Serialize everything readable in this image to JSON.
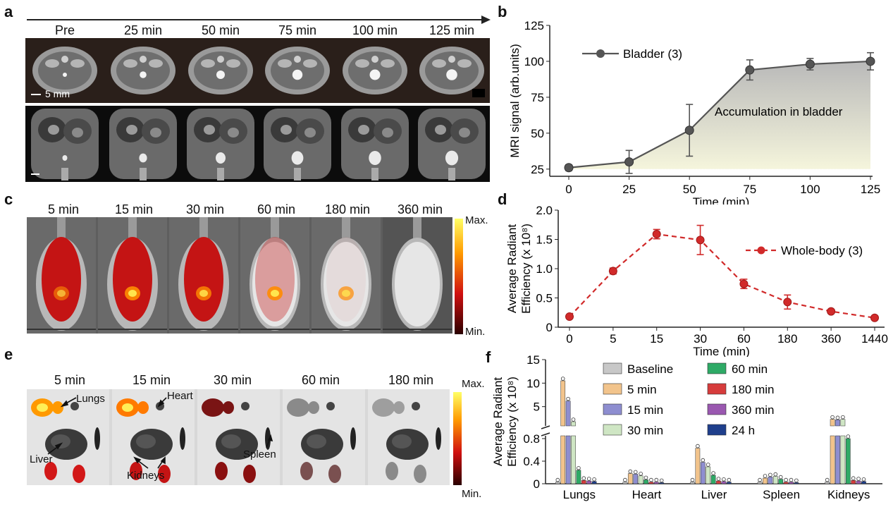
{
  "panels": {
    "a": {
      "label": "a",
      "times": [
        "Pre",
        "25 min",
        "50 min",
        "75 min",
        "100 min",
        "125 min"
      ],
      "scale_bar": "5 mm"
    },
    "b": {
      "label": "b",
      "annotation": "Accumulation in bladder",
      "chart_data": {
        "type": "line",
        "x": [
          0,
          25,
          50,
          75,
          100,
          125
        ],
        "series": [
          {
            "name": "Bladder (3)",
            "values": [
              26,
              30,
              52,
              94,
              98,
              100
            ],
            "errors": [
              2,
              8,
              18,
              7,
              4,
              6
            ]
          }
        ],
        "xlabel": "Time (min)",
        "ylabel": "MRI signal (arb.units)",
        "xticks": [
          "0",
          "25",
          "50",
          "75",
          "100",
          "125"
        ],
        "yticks": [
          "25",
          "50",
          "75",
          "100",
          "125"
        ],
        "ylim": [
          20,
          125
        ],
        "legend": "top-left",
        "color": "#555555"
      }
    },
    "c": {
      "label": "c",
      "times": [
        "5 min",
        "15 min",
        "30 min",
        "60 min",
        "180 min",
        "360 min"
      ],
      "colorbar_max": "Max.",
      "colorbar_min": "Min."
    },
    "d": {
      "label": "d",
      "chart_data": {
        "type": "line",
        "x": [
          "0",
          "5",
          "15",
          "30",
          "60",
          "180",
          "360",
          "1440"
        ],
        "series": [
          {
            "name": "Whole-body (3)",
            "values": [
              0.18,
              0.96,
              1.59,
              1.49,
              0.74,
              0.43,
              0.27,
              0.16
            ],
            "errors": [
              0.02,
              0.05,
              0.08,
              0.25,
              0.08,
              0.12,
              0.03,
              0.02
            ]
          }
        ],
        "xlabel": "Time (min)",
        "ylabel_line1": "Average Radiant",
        "ylabel_line2": "Efficiency (x 10⁸)",
        "yticks": [
          "0",
          "0.5",
          "1.0",
          "1.5",
          "2.0"
        ],
        "ylim": [
          0,
          2.0
        ],
        "legend": "right",
        "color": "#d12a2a"
      }
    },
    "e": {
      "label": "e",
      "times": [
        "5 min",
        "15 min",
        "30 min",
        "60 min",
        "180 min"
      ],
      "organ_labels": {
        "lungs": "Lungs",
        "heart": "Heart",
        "liver": "Liver",
        "spleen": "Spleen",
        "kidneys": "Kidneys"
      },
      "colorbar_max": "Max.",
      "colorbar_min": "Min."
    },
    "f": {
      "label": "f",
      "chart_data": {
        "type": "bar",
        "categories": [
          "Lungs",
          "Heart",
          "Liver",
          "Spleen",
          "Kidneys"
        ],
        "series": [
          {
            "name": "Baseline",
            "color": "#c8c8c8",
            "values": [
              0.03,
              0.03,
              0.03,
              0.03,
              0.03
            ]
          },
          {
            "name": "5 min",
            "color": "#f2c48c",
            "values": [
              10.5,
              0.18,
              0.63,
              0.1,
              2.3
            ]
          },
          {
            "name": "15 min",
            "color": "#8e8ed0",
            "values": [
              6.2,
              0.17,
              0.38,
              0.12,
              2.2
            ]
          },
          {
            "name": "30 min",
            "color": "#cfe6c4",
            "values": [
              1.8,
              0.14,
              0.3,
              0.13,
              2.3
            ]
          },
          {
            "name": "60 min",
            "color": "#2eaa66",
            "values": [
              0.24,
              0.07,
              0.15,
              0.08,
              0.8
            ]
          },
          {
            "name": "180 min",
            "color": "#d63c3c",
            "values": [
              0.06,
              0.03,
              0.05,
              0.03,
              0.06
            ]
          },
          {
            "name": "360 min",
            "color": "#9a58b0",
            "values": [
              0.05,
              0.03,
              0.04,
              0.03,
              0.05
            ]
          },
          {
            "name": "24 h",
            "color": "#1f3f8c",
            "values": [
              0.04,
              0.02,
              0.03,
              0.02,
              0.04
            ]
          }
        ],
        "ylabel_line1": "Average Radiant",
        "ylabel_line2": "Efficiency (x 10⁸)",
        "yticks_low": [
          "0",
          "0.4",
          "0.8"
        ],
        "yticks_high": [
          "5",
          "10",
          "15"
        ],
        "ylim_low": [
          0,
          0.8
        ],
        "ylim_high": [
          1.5,
          15
        ],
        "legend": "top"
      }
    }
  }
}
